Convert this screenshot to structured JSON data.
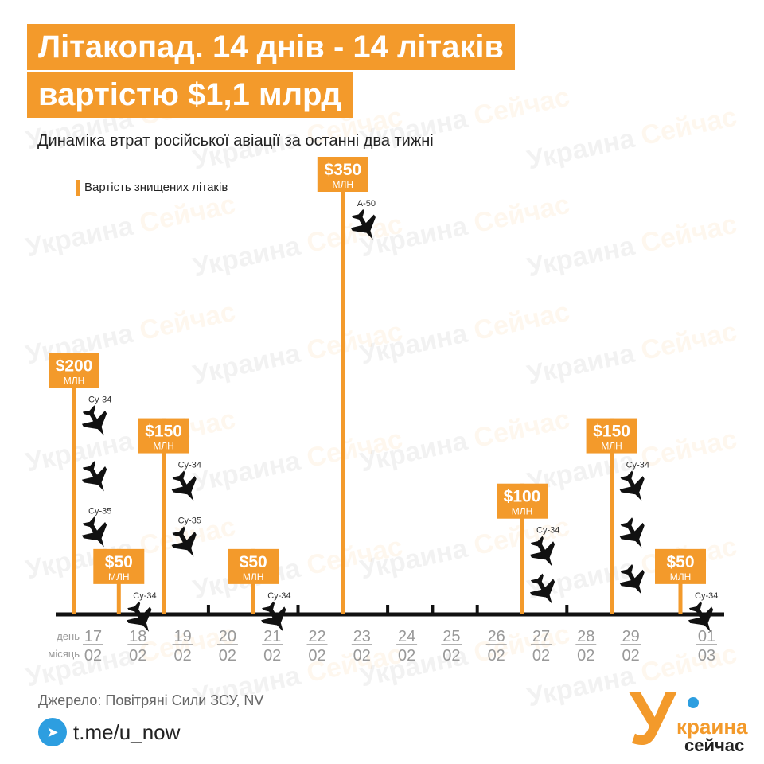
{
  "header": {
    "title_line1": "Літакопад. 14 днів - 14 літаків",
    "title_line2": "вартістю $1,1 млрд",
    "subtitle": "Динаміка втрат російської авіації за останні два тижні"
  },
  "watermark": {
    "word1": "Украина",
    "word2": "Сейчас"
  },
  "footer": {
    "source": "Джерело: Повітряні Сили ЗСУ, NV",
    "telegram": "t.me/u_now",
    "logo_line1": "краина",
    "logo_line2": "сейчас",
    "logo_letter": "У"
  },
  "colors": {
    "accent": "#f39a2b",
    "axis": "#111111",
    "label": "#999999"
  },
  "chart_data": {
    "type": "bar",
    "legend": "Вартість знищених літаків",
    "row_labels": [
      "день",
      "місяць"
    ],
    "unit": "МЛН",
    "categories": [
      {
        "day": "17",
        "month": "02",
        "value": 200,
        "aircraft": [
          "Су-34",
          "",
          "Су-35"
        ]
      },
      {
        "day": "18",
        "month": "02",
        "value": 50,
        "aircraft": [
          "Су-34"
        ]
      },
      {
        "day": "19",
        "month": "02",
        "value": 150,
        "aircraft": [
          "Су-34",
          "Су-35"
        ]
      },
      {
        "day": "20",
        "month": "02",
        "value": 0,
        "aircraft": []
      },
      {
        "day": "21",
        "month": "02",
        "value": 50,
        "aircraft": [
          "Су-34"
        ]
      },
      {
        "day": "22",
        "month": "02",
        "value": 0,
        "aircraft": []
      },
      {
        "day": "23",
        "month": "02",
        "value": 350,
        "aircraft": [
          "А-50"
        ]
      },
      {
        "day": "24",
        "month": "02",
        "value": 0,
        "aircraft": []
      },
      {
        "day": "25",
        "month": "02",
        "value": 0,
        "aircraft": []
      },
      {
        "day": "26",
        "month": "02",
        "value": 0,
        "aircraft": []
      },
      {
        "day": "27",
        "month": "02",
        "value": 100,
        "aircraft": [
          "Су-34",
          ""
        ]
      },
      {
        "day": "28",
        "month": "02",
        "value": 0,
        "aircraft": []
      },
      {
        "day": "29",
        "month": "02",
        "value": 150,
        "aircraft": [
          "Су-34",
          "",
          ""
        ]
      },
      {
        "day": "01",
        "month": "03",
        "value": 50,
        "aircraft": [
          "Су-34"
        ]
      }
    ],
    "value_prefix": "$",
    "ylim": [
      0,
      350
    ],
    "grid": false
  }
}
